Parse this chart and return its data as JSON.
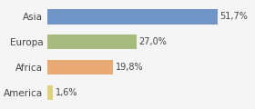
{
  "categories": [
    "America",
    "Africa",
    "Europa",
    "Asia"
  ],
  "values": [
    1.6,
    19.8,
    27.0,
    51.7
  ],
  "bar_colors": [
    "#e0d080",
    "#e8aa72",
    "#a8bb7e",
    "#7096c8"
  ],
  "label_texts": [
    "1,6%",
    "19,8%",
    "27,0%",
    "51,7%"
  ],
  "background_color": "#f5f5f5",
  "figsize": [
    2.8,
    1.2
  ],
  "dpi": 100,
  "xlim": [
    0,
    62
  ]
}
